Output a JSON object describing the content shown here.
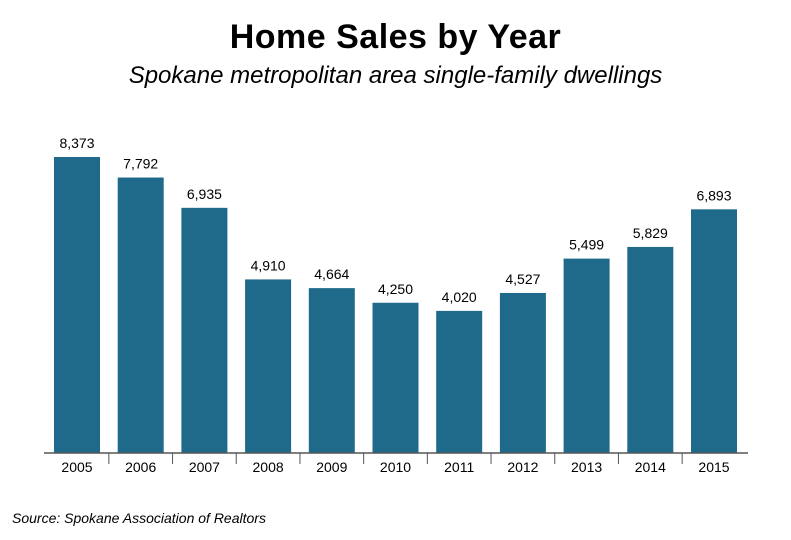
{
  "chart_data": {
    "type": "bar",
    "title": "Home Sales by Year",
    "subtitle": "Spokane metropolitan area single-family dwellings",
    "categories": [
      "2005",
      "2006",
      "2007",
      "2008",
      "2009",
      "2010",
      "2011",
      "2012",
      "2013",
      "2014",
      "2015"
    ],
    "values": [
      8373,
      7792,
      6935,
      4910,
      4664,
      4250,
      4020,
      4527,
      5499,
      5829,
      6893
    ],
    "data_labels": [
      "8,373",
      "7,792",
      "6,935",
      "4,910",
      "4,664",
      "4,250",
      "4,020",
      "4,527",
      "5,499",
      "5,829",
      "6,893"
    ],
    "xlabel": "",
    "ylabel": "",
    "ylim": [
      0,
      8373
    ],
    "grid": false,
    "bar_color": "#1f6a8a",
    "source": "Source: Spokane Association of Realtors"
  }
}
